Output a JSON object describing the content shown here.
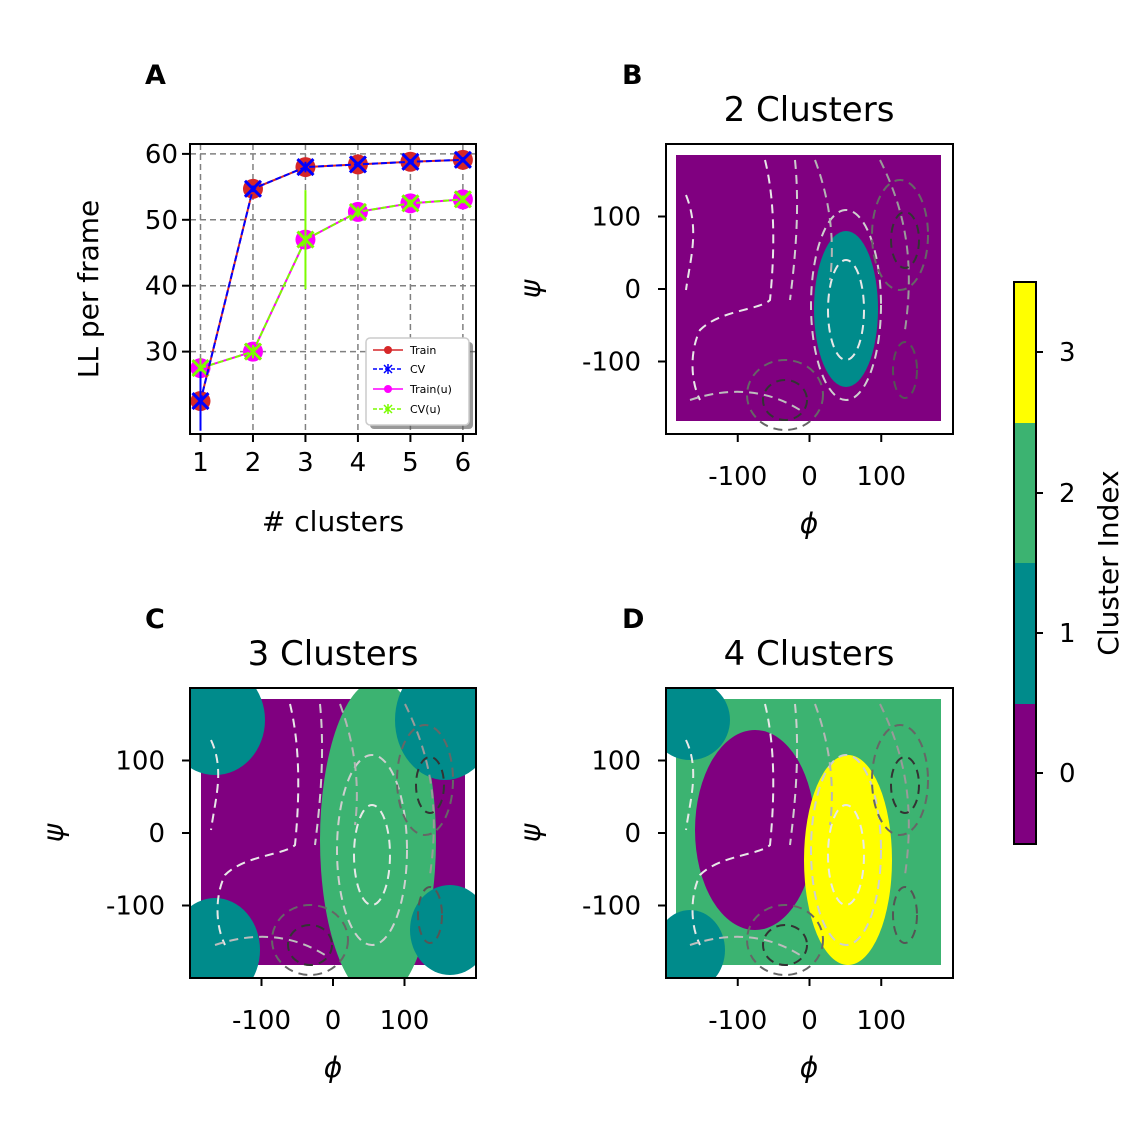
{
  "colors": {
    "cluster0": "#800080",
    "cluster1": "#008b8b",
    "cluster2": "#3cb371",
    "cluster3": "#ffff00",
    "train": "#d62728",
    "cv": "#0000ff",
    "train_u": "#ff00ff",
    "cv_u": "#7cfc00",
    "grid": "#808080"
  },
  "panel_labels": [
    "A",
    "B",
    "C",
    "D"
  ],
  "chart_data": [
    {
      "type": "line",
      "panel": "A",
      "title": "",
      "xlabel": "# clusters",
      "ylabel": "LL per frame",
      "x": [
        1,
        2,
        3,
        4,
        5,
        6
      ],
      "xlim": [
        0.8,
        6.25
      ],
      "ylim": [
        17.5,
        61.5
      ],
      "xticks": [
        1,
        2,
        3,
        4,
        5,
        6
      ],
      "yticks": [
        30,
        40,
        50,
        60
      ],
      "grid": true,
      "legend_location": "lower right",
      "series": [
        {
          "name": "Train",
          "values": [
            22.5,
            54.7,
            58.0,
            58.4,
            58.8,
            59.1
          ],
          "marker": "circle",
          "color": "#d62728"
        },
        {
          "name": "CV",
          "values": [
            22.5,
            54.7,
            58.0,
            58.4,
            58.8,
            59.1
          ],
          "errors": [
            4.5,
            0.5,
            0.8,
            0.4,
            0.4,
            0.4
          ],
          "marker": "x",
          "color": "#0000ff"
        },
        {
          "name": "Train(u)",
          "values": [
            27.5,
            30.0,
            47.0,
            51.2,
            52.5,
            53.1
          ],
          "marker": "circle",
          "color": "#ff00ff"
        },
        {
          "name": "CV(u)",
          "values": [
            27.5,
            30.0,
            47.0,
            51.2,
            52.5,
            53.1
          ],
          "errors": [
            1.5,
            1.0,
            7.5,
            0.8,
            0.6,
            0.6
          ],
          "marker": "x",
          "color": "#7cfc00"
        }
      ]
    },
    {
      "type": "scatter",
      "panel": "B",
      "title": "2 Clusters",
      "xlabel": "ϕ",
      "ylabel": "ψ",
      "xlim": [
        -200,
        200
      ],
      "ylim": [
        -200,
        200
      ],
      "xtick_labels": [
        "-100",
        "0",
        "100"
      ],
      "ytick_labels": [
        "100",
        "0",
        "-100"
      ],
      "n_clusters": 2
    },
    {
      "type": "scatter",
      "panel": "C",
      "title": "3 Clusters",
      "xlabel": "ϕ",
      "ylabel": "ψ",
      "xlim": [
        -200,
        200
      ],
      "ylim": [
        -200,
        200
      ],
      "xtick_labels": [
        "-100",
        "0",
        "100"
      ],
      "ytick_labels": [
        "100",
        "0",
        "-100"
      ],
      "n_clusters": 3
    },
    {
      "type": "scatter",
      "panel": "D",
      "title": "4 Clusters",
      "xlabel": "ϕ",
      "ylabel": "ψ",
      "xlim": [
        -200,
        200
      ],
      "ylim": [
        -200,
        200
      ],
      "xtick_labels": [
        "-100",
        "0",
        "100"
      ],
      "ytick_labels": [
        "100",
        "0",
        "-100"
      ],
      "n_clusters": 4
    }
  ],
  "colorbar": {
    "label": "Cluster Index",
    "tick_labels": [
      "0",
      "1",
      "2",
      "3"
    ]
  }
}
